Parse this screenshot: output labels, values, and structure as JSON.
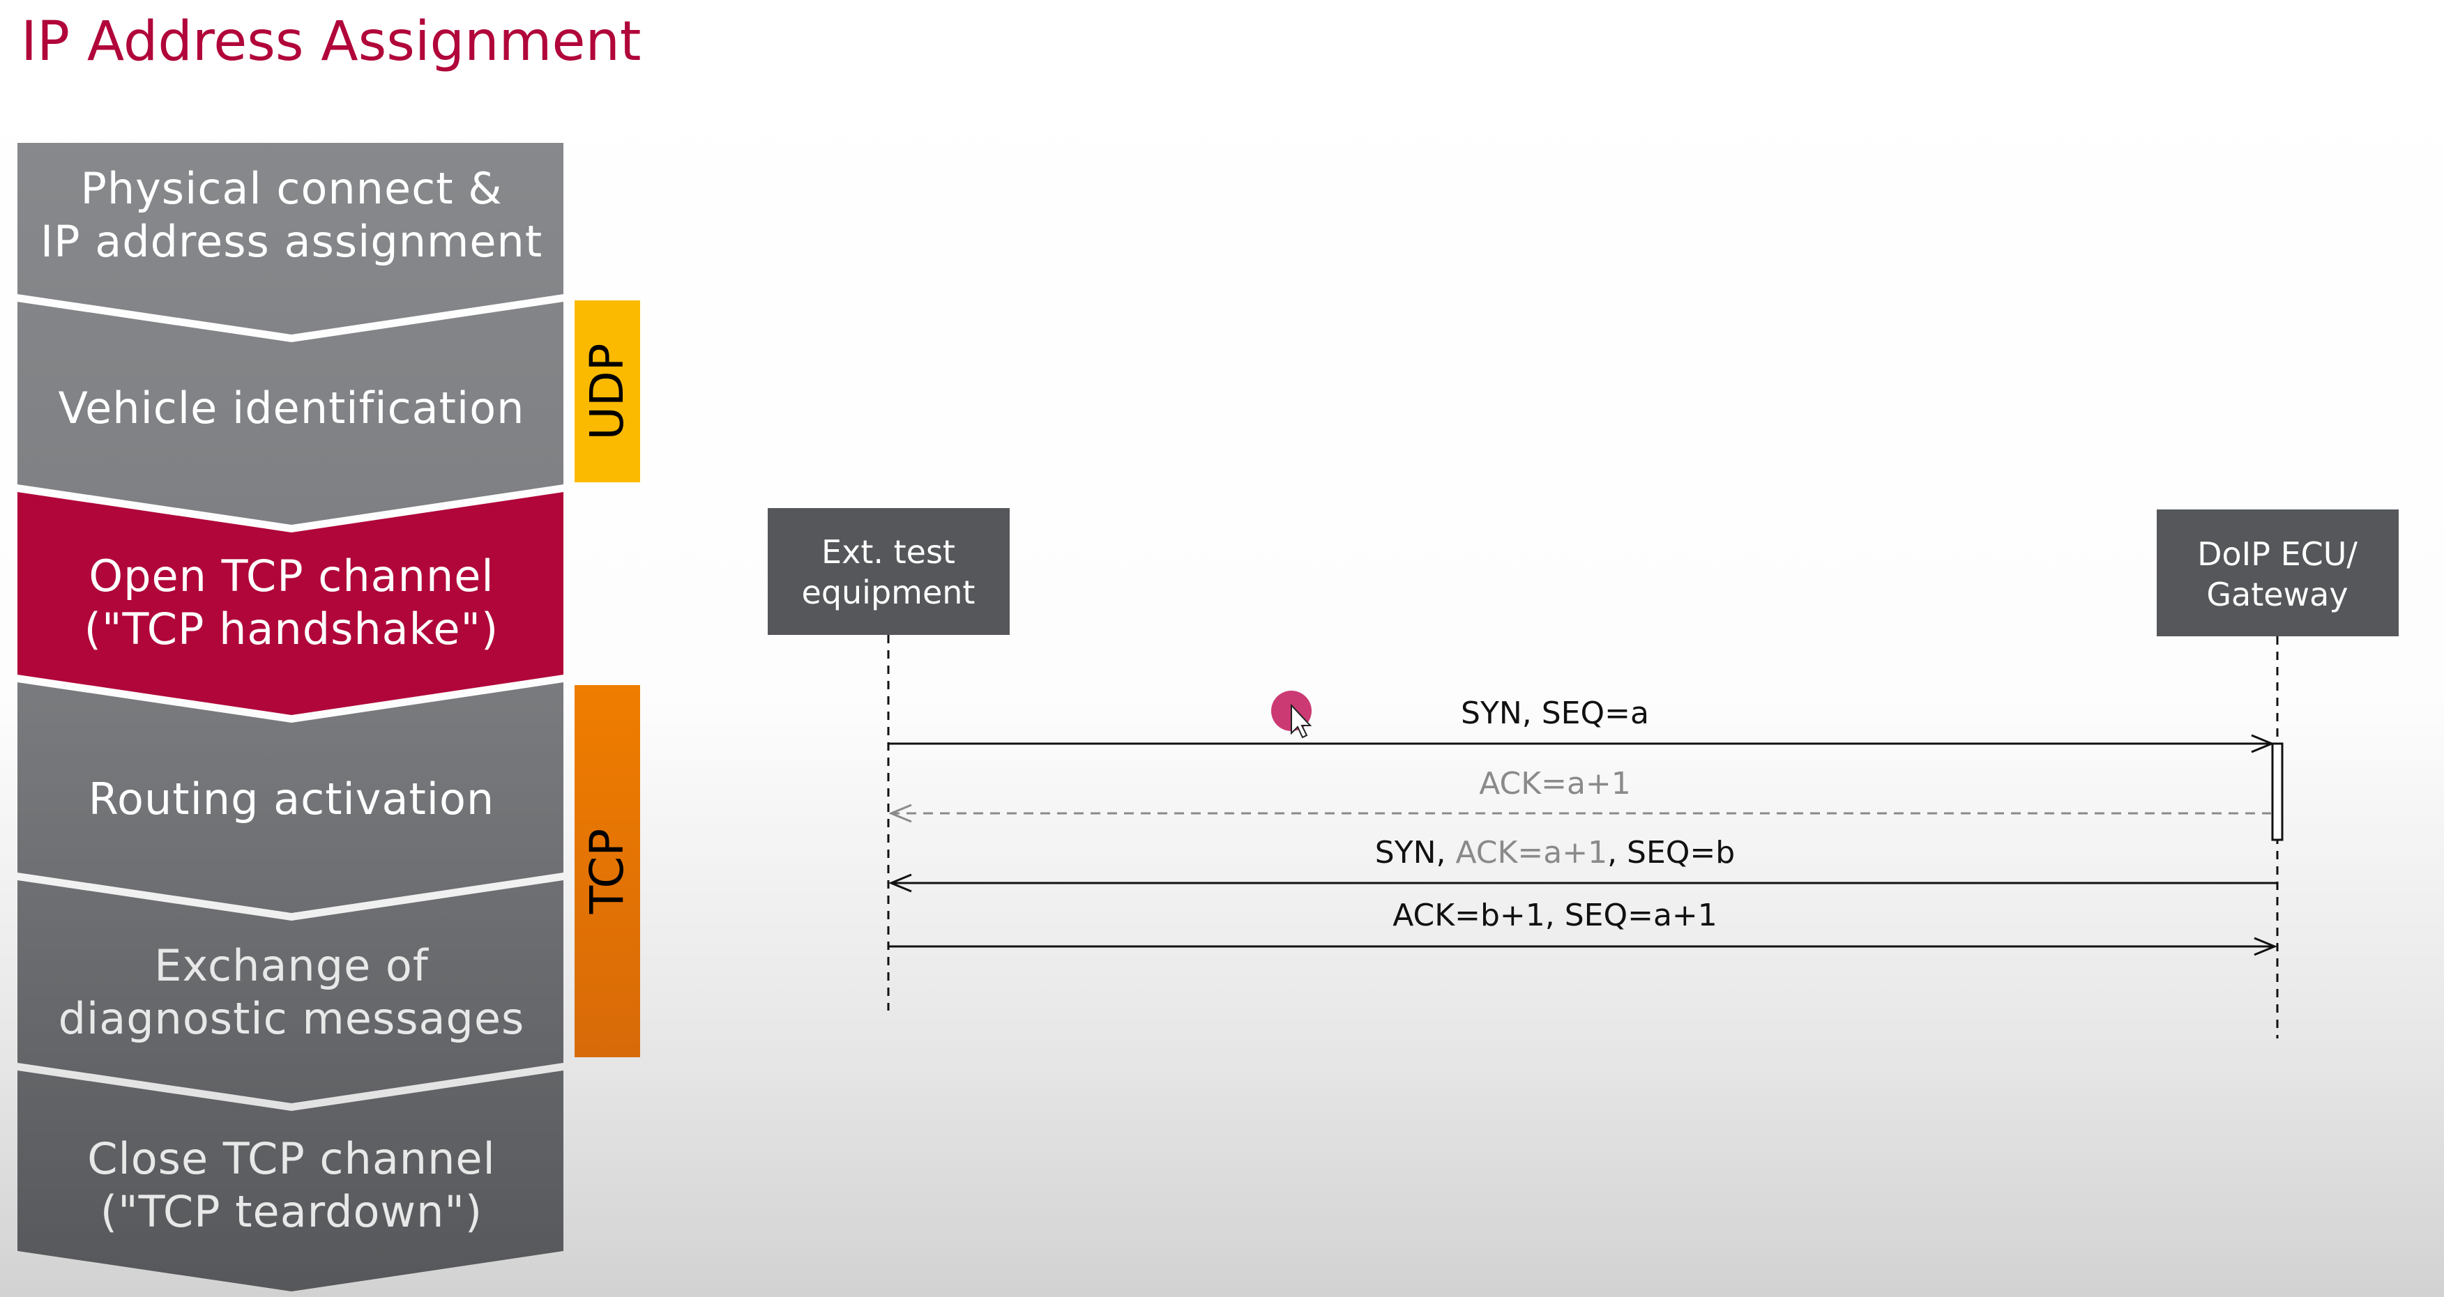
{
  "title": "IP Address Assignment",
  "steps": [
    {
      "line1": "Physical connect &",
      "line2": "IP address assignment"
    },
    {
      "line1": "Vehicle identification"
    },
    {
      "line1": "Open TCP channel",
      "line2": "(\"TCP handshake\")"
    },
    {
      "line1": "Routing activation"
    },
    {
      "line1": "Exchange of",
      "line2": "diagnostic messages"
    },
    {
      "line1": "Close TCP channel",
      "line2": "(\"TCP teardown\")"
    }
  ],
  "protocols": {
    "udp": "UDP",
    "tcp": "TCP"
  },
  "actors": {
    "left": {
      "line1": "Ext. test",
      "line2": "equipment"
    },
    "right": {
      "line1": "DoIP ECU/",
      "line2": "Gateway"
    }
  },
  "messages": [
    {
      "parts": [
        "SYN, SEQ=a"
      ]
    },
    {
      "parts": [
        "ACK=a+1"
      ]
    },
    {
      "parts": [
        "SYN, ",
        "ACK=a+1",
        ", SEQ=b"
      ]
    },
    {
      "parts": [
        "ACK=b+1, SEQ=a+1"
      ]
    }
  ],
  "colors": {
    "title": "#b1063a",
    "step_grey": "#7e8083",
    "step_active": "#b1063a",
    "udp": "#fbb900",
    "tcp": "#ee7a00",
    "actor_box": "#55575a",
    "dashed_message": "#8a8a8a"
  }
}
